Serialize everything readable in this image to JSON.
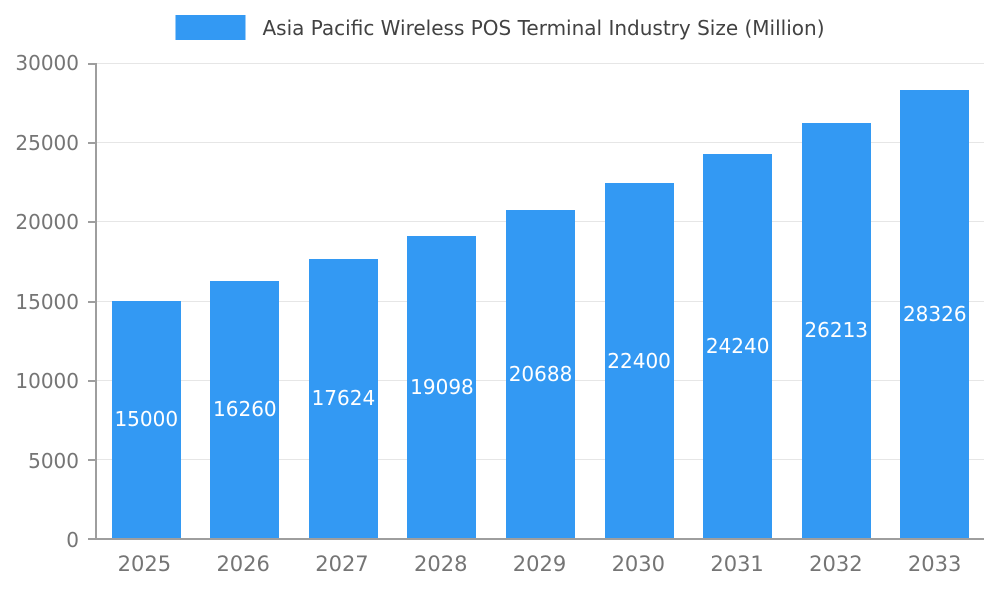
{
  "chart_data": {
    "type": "bar",
    "title": "Asia Pacific Wireless POS Terminal Industry Size (Million)",
    "categories": [
      "2025",
      "2026",
      "2027",
      "2028",
      "2029",
      "2030",
      "2031",
      "2032",
      "2033"
    ],
    "values": [
      15000,
      16260,
      17624,
      19098,
      20688,
      22400,
      24240,
      26213,
      28326
    ],
    "xlabel": "",
    "ylabel": "",
    "ylim": [
      0,
      30000
    ],
    "ytick_interval": 5000,
    "ytick_labels": [
      "0",
      "5000",
      "10000",
      "15000",
      "20000",
      "25000",
      "30000"
    ],
    "grid": true,
    "legend_position": "top-center",
    "bar_color": "#3399f3",
    "bar_label_color": "#ffffff",
    "axis_line_color": "#9e9e9e",
    "grid_color": "#e6e6e6",
    "tick_text_color": "#757575",
    "title_color": "#424242"
  }
}
